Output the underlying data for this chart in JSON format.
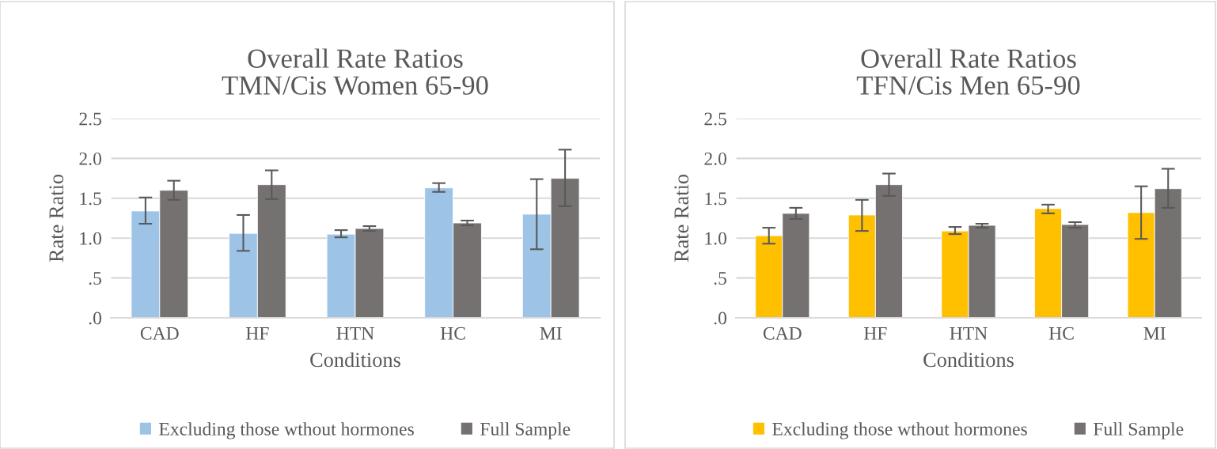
{
  "chart_data": [
    {
      "type": "bar",
      "title": "Overall Rate Ratios\nTMN/Cis Women 65-90",
      "xlabel": "Conditions",
      "ylabel": "Rate Ratio",
      "categories": [
        "CAD",
        "HF",
        "HTN",
        "HC",
        "MI"
      ],
      "series": [
        {
          "name": "Excluding those wthout hormones",
          "color": "#9dc3e6",
          "values": [
            1.34,
            1.06,
            1.05,
            1.63,
            1.3
          ],
          "errors": [
            [
              1.18,
              1.51
            ],
            [
              0.84,
              1.29
            ],
            [
              1.01,
              1.1
            ],
            [
              1.58,
              1.69
            ],
            [
              0.86,
              1.74
            ]
          ]
        },
        {
          "name": "Full Sample",
          "color": "#767171",
          "values": [
            1.6,
            1.67,
            1.12,
            1.19,
            1.75
          ],
          "errors": [
            [
              1.48,
              1.72
            ],
            [
              1.49,
              1.85
            ],
            [
              1.09,
              1.15
            ],
            [
              1.16,
              1.22
            ],
            [
              1.4,
              2.11
            ]
          ]
        }
      ],
      "ylim": [
        0,
        2.5
      ],
      "yticks": [
        {
          "value": 0,
          "label": ".0"
        },
        {
          "value": 0.5,
          "label": ".5"
        },
        {
          "value": 1.0,
          "label": "1.0"
        },
        {
          "value": 1.5,
          "label": "1.5"
        },
        {
          "value": 2.0,
          "label": "2.0"
        },
        {
          "value": 2.5,
          "label": "2.5"
        }
      ],
      "grid": "y",
      "legend": "bottom"
    },
    {
      "type": "bar",
      "title": "Overall Rate Ratios\nTFN/Cis Men 65-90",
      "xlabel": "Conditions",
      "ylabel": "Rate Ratio",
      "categories": [
        "CAD",
        "HF",
        "HTN",
        "HC",
        "MI"
      ],
      "series": [
        {
          "name": "Excluding those wthout hormones",
          "color": "#ffc000",
          "values": [
            1.03,
            1.29,
            1.09,
            1.37,
            1.32
          ],
          "errors": [
            [
              0.93,
              1.13
            ],
            [
              1.09,
              1.48
            ],
            [
              1.05,
              1.14
            ],
            [
              1.31,
              1.42
            ],
            [
              0.99,
              1.65
            ]
          ]
        },
        {
          "name": "Full Sample",
          "color": "#767171",
          "values": [
            1.31,
            1.67,
            1.16,
            1.17,
            1.62
          ],
          "errors": [
            [
              1.24,
              1.38
            ],
            [
              1.53,
              1.81
            ],
            [
              1.13,
              1.18
            ],
            [
              1.13,
              1.2
            ],
            [
              1.38,
              1.87
            ]
          ]
        }
      ],
      "ylim": [
        0,
        2.5
      ],
      "yticks": [
        {
          "value": 0,
          "label": ".0"
        },
        {
          "value": 0.5,
          "label": ".5"
        },
        {
          "value": 1.0,
          "label": "1.0"
        },
        {
          "value": 1.5,
          "label": "1.5"
        },
        {
          "value": 2.0,
          "label": "2.0"
        },
        {
          "value": 2.5,
          "label": "2.5"
        }
      ],
      "grid": "y",
      "legend": "bottom"
    }
  ]
}
